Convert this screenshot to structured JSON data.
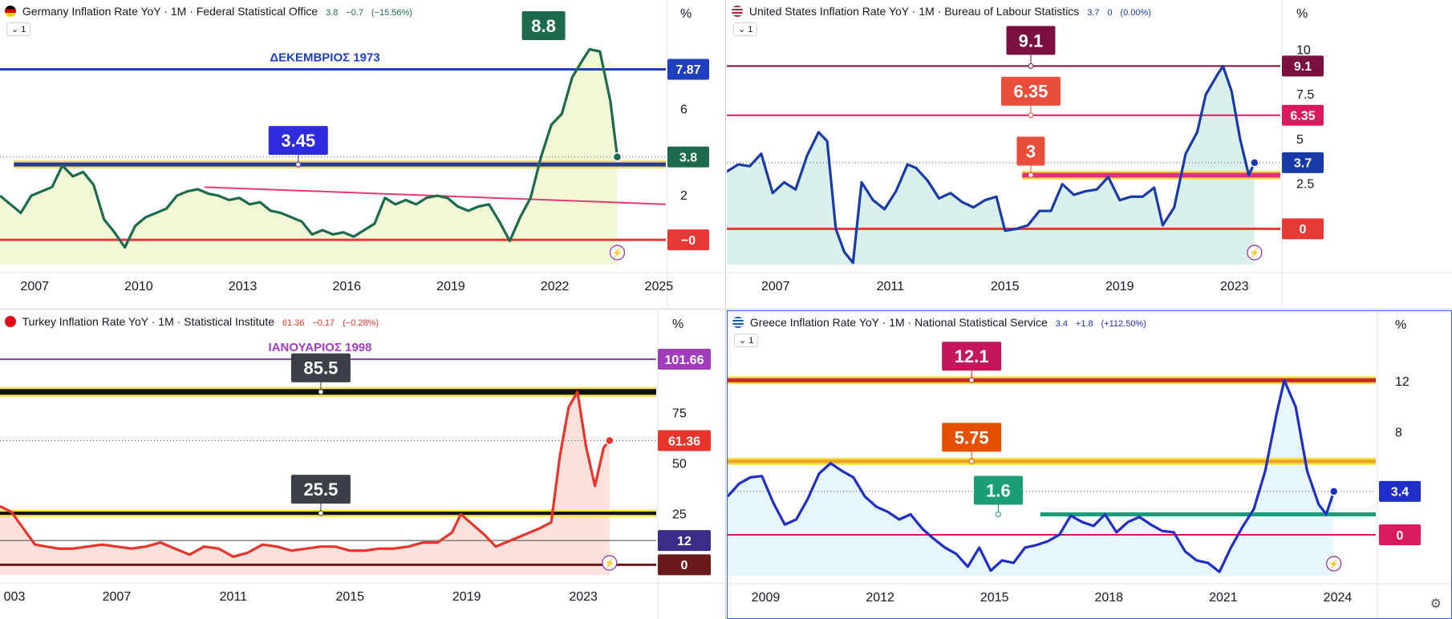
{
  "chart_data": [
    {
      "type": "line",
      "title": "Germany Inflation Rate YoY · 1M · Federal Statistical Office",
      "header_values": {
        "last": "3.8",
        "change": "−0.7",
        "change_pct": "(−15.56%)"
      },
      "interval": "1",
      "ylabel": "%",
      "ylim": [
        -1.2,
        9.6
      ],
      "xlim": [
        2006.0,
        2025.2
      ],
      "y_ticks": [
        "6",
        "2"
      ],
      "x_ticks": [
        "2007",
        "2010",
        "2013",
        "2016",
        "2019",
        "2022",
        "2025"
      ],
      "annotations": [
        "ΔΕΚΕΜΒΡΙΟΣ 1973"
      ],
      "price_badges": [
        "7.87",
        "3.8",
        "−0"
      ],
      "callouts": [
        "8.8",
        "3.45"
      ],
      "colors": {
        "line": "#1b6b4c",
        "fill": "#e8f3b5",
        "badge_last": "#1b6b4c"
      },
      "series": [
        {
          "x": [
            2006.0,
            2006.3,
            2006.6,
            2006.9,
            2007.2,
            2007.5,
            2007.8,
            2008.1,
            2008.4,
            2008.7,
            2009.0,
            2009.3,
            2009.6,
            2009.9,
            2010.2,
            2010.5,
            2010.8,
            2011.1,
            2011.4,
            2011.7,
            2012.0,
            2012.3,
            2012.6,
            2012.9,
            2013.2,
            2013.5,
            2013.8,
            2014.1,
            2014.4,
            2014.7,
            2015.0,
            2015.3,
            2015.6,
            2015.9,
            2016.2,
            2016.5,
            2016.8,
            2017.1,
            2017.4,
            2017.7,
            2018.0,
            2018.3,
            2018.6,
            2018.9,
            2019.2,
            2019.5,
            2019.8,
            2020.1,
            2020.4,
            2020.7,
            2021.0,
            2021.3,
            2021.6,
            2021.9,
            2022.2,
            2022.5,
            2022.8,
            2023.0,
            2023.3,
            2023.6,
            2023.8
          ],
          "y": [
            2.0,
            1.6,
            1.2,
            2.0,
            2.2,
            2.4,
            3.4,
            2.9,
            3.1,
            2.5,
            0.9,
            0.3,
            -0.4,
            0.6,
            1.0,
            1.2,
            1.4,
            2.0,
            2.2,
            2.3,
            2.1,
            2.0,
            1.8,
            1.9,
            1.6,
            1.7,
            1.3,
            1.2,
            1.0,
            0.8,
            0.2,
            0.4,
            0.2,
            0.3,
            0.1,
            0.4,
            0.7,
            1.9,
            1.6,
            1.8,
            1.6,
            1.9,
            2.0,
            1.9,
            1.5,
            1.3,
            1.5,
            1.6,
            0.8,
            -0.1,
            1.0,
            1.9,
            3.8,
            5.3,
            5.8,
            7.5,
            8.3,
            8.8,
            8.7,
            6.4,
            3.8
          ]
        }
      ]
    },
    {
      "type": "line",
      "title": "United States Inflation Rate YoY · 1M · Bureau of Labour Statistics",
      "header_values": {
        "last": "3.7",
        "change": "0",
        "change_pct": "(0.00%)"
      },
      "interval": "1",
      "ylabel": "%",
      "ylim": [
        -2.0,
        11.0
      ],
      "xlim": [
        2005.3,
        2024.6
      ],
      "y_ticks": [
        "10",
        "7.5",
        "5",
        "2.5"
      ],
      "x_ticks": [
        "2007",
        "2011",
        "2015",
        "2019",
        "2023"
      ],
      "price_badges": [
        "9.1",
        "6.35",
        "3.7",
        "0"
      ],
      "callouts": [
        "9.1",
        "6.35",
        "3"
      ],
      "colors": {
        "line": "#1a3aa8",
        "fill": "#b9e3dc",
        "badge_last": "#1a3aa8"
      },
      "series": [
        {
          "x": [
            2005.3,
            2005.7,
            2006.1,
            2006.5,
            2006.9,
            2007.3,
            2007.7,
            2008.1,
            2008.5,
            2008.8,
            2009.1,
            2009.4,
            2009.7,
            2010.0,
            2010.4,
            2010.8,
            2011.2,
            2011.6,
            2011.9,
            2012.3,
            2012.7,
            2013.1,
            2013.5,
            2013.9,
            2014.3,
            2014.7,
            2015.0,
            2015.4,
            2015.8,
            2016.2,
            2016.6,
            2017.0,
            2017.4,
            2017.8,
            2018.2,
            2018.6,
            2019.0,
            2019.4,
            2019.8,
            2020.2,
            2020.5,
            2020.9,
            2021.3,
            2021.7,
            2022.0,
            2022.4,
            2022.6,
            2022.9,
            2023.2,
            2023.5,
            2023.7
          ],
          "y": [
            3.2,
            3.6,
            3.5,
            4.2,
            2.0,
            2.6,
            2.2,
            4.1,
            5.4,
            4.9,
            0.0,
            -1.3,
            -1.9,
            2.6,
            1.6,
            1.1,
            2.1,
            3.6,
            3.4,
            2.7,
            1.7,
            2.0,
            1.5,
            1.2,
            1.6,
            1.8,
            -0.1,
            0.0,
            0.2,
            1.0,
            1.0,
            2.5,
            1.9,
            2.1,
            2.2,
            2.9,
            1.6,
            1.8,
            1.8,
            2.3,
            0.2,
            1.2,
            4.2,
            5.4,
            7.5,
            8.6,
            9.1,
            7.7,
            5.0,
            3.0,
            3.7
          ]
        }
      ]
    },
    {
      "type": "line",
      "title": "Turkey Inflation Rate YoY · 1M · Statistical Institute",
      "header_values": {
        "last": "61.36",
        "change": "−0.17",
        "change_pct": "(−0.28%)"
      },
      "interval": "",
      "ylabel": "%",
      "ylim": [
        -5,
        110
      ],
      "xlim": [
        2003.0,
        2025.5
      ],
      "y_ticks": [
        "75",
        "50",
        "25"
      ],
      "x_ticks": [
        "003",
        "2007",
        "2011",
        "2015",
        "2019",
        "2023"
      ],
      "annotations": [
        "ΙΑΝΟΥΑΡΙΟΣ 1998"
      ],
      "price_badges": [
        "101.66",
        "61.36",
        "12",
        "0"
      ],
      "callouts": [
        "85.5",
        "25.5"
      ],
      "colors": {
        "line": "#e8352b",
        "fill": "#f9c8c0",
        "badge_last": "#e8352b"
      },
      "series": [
        {
          "x": [
            2003.0,
            2003.4,
            2003.8,
            2004.2,
            2004.6,
            2005.0,
            2005.5,
            2006.0,
            2006.5,
            2007.0,
            2007.5,
            2008.0,
            2008.5,
            2009.0,
            2009.5,
            2010.0,
            2010.5,
            2011.0,
            2011.5,
            2012.0,
            2012.5,
            2013.0,
            2013.5,
            2014.0,
            2014.5,
            2015.0,
            2015.5,
            2016.0,
            2016.5,
            2017.0,
            2017.5,
            2018.0,
            2018.5,
            2018.8,
            2019.2,
            2019.6,
            2020.0,
            2020.5,
            2021.0,
            2021.5,
            2021.9,
            2022.2,
            2022.5,
            2022.8,
            2023.1,
            2023.4,
            2023.7,
            2023.9
          ],
          "y": [
            29.0,
            26.0,
            18.0,
            10.0,
            9.0,
            8.0,
            8.0,
            9.0,
            10.0,
            9.0,
            8.0,
            9.0,
            11.0,
            8.0,
            5.0,
            9.0,
            8.0,
            4.0,
            6.0,
            10.0,
            9.0,
            7.0,
            8.0,
            9.0,
            9.0,
            7.0,
            7.0,
            8.0,
            8.0,
            9.0,
            11.0,
            11.0,
            16.0,
            25.0,
            20.0,
            15.0,
            9.0,
            12.0,
            15.0,
            18.0,
            21.0,
            54.0,
            78.0,
            85.5,
            58.0,
            39.0,
            58.0,
            61.4
          ]
        }
      ]
    },
    {
      "type": "line",
      "title": "Greece Inflation Rate YoY · 1M · National Statistical Service",
      "header_values": {
        "last": "3.4",
        "change": "+1.8",
        "change_pct": "(+112.50%)"
      },
      "interval": "1",
      "ylabel": "%",
      "ylim": [
        -3.2,
        15.0
      ],
      "xlim": [
        2008.0,
        2025.0
      ],
      "y_ticks": [
        "12",
        "8"
      ],
      "x_ticks": [
        "2009",
        "2012",
        "2015",
        "2018",
        "2021",
        "2024"
      ],
      "price_badges": [
        "3.4",
        "0"
      ],
      "callouts": [
        "12.1",
        "5.75",
        "1.6"
      ],
      "colors": {
        "line": "#1f2ec4",
        "fill": "#d4eef7",
        "badge_last": "#1f2ec4"
      },
      "series": [
        {
          "x": [
            2008.0,
            2008.3,
            2008.6,
            2008.9,
            2009.2,
            2009.5,
            2009.8,
            2010.1,
            2010.4,
            2010.7,
            2011.0,
            2011.3,
            2011.6,
            2011.9,
            2012.2,
            2012.5,
            2012.8,
            2013.1,
            2013.4,
            2013.7,
            2014.0,
            2014.3,
            2014.6,
            2014.9,
            2015.2,
            2015.5,
            2015.8,
            2016.1,
            2016.4,
            2016.7,
            2017.0,
            2017.3,
            2017.6,
            2017.9,
            2018.2,
            2018.5,
            2018.8,
            2019.1,
            2019.4,
            2019.7,
            2020.0,
            2020.3,
            2020.6,
            2020.9,
            2021.2,
            2021.5,
            2021.8,
            2022.1,
            2022.4,
            2022.6,
            2022.9,
            2023.2,
            2023.5,
            2023.7,
            2023.9
          ],
          "y": [
            3.0,
            4.0,
            4.5,
            4.6,
            2.5,
            0.8,
            1.2,
            2.8,
            4.8,
            5.6,
            5.0,
            4.5,
            3.0,
            2.2,
            1.8,
            1.2,
            1.6,
            0.5,
            -0.3,
            -1.0,
            -1.5,
            -2.5,
            -1.0,
            -2.8,
            -2.0,
            -2.2,
            -1.0,
            -0.8,
            -0.5,
            0.0,
            1.5,
            1.0,
            0.7,
            1.6,
            0.2,
            1.0,
            1.4,
            0.8,
            0.3,
            0.2,
            -1.3,
            -2.0,
            -2.2,
            -2.9,
            -1.0,
            0.6,
            2.0,
            5.0,
            9.5,
            12.1,
            10.0,
            5.0,
            2.4,
            1.6,
            3.4
          ]
        }
      ]
    }
  ],
  "panels": [
    {
      "levels": [
        {
          "label": "ΔΕΚΕΜΒΡΙΟΣ 1973",
          "value": 7.87,
          "color": "#1f3fbf",
          "width": 3,
          "badge": "7.87"
        },
        {
          "value": 3.45,
          "color": "#2637a6",
          "width": 5,
          "halo": "#f4e04d",
          "from": 2006.4,
          "callout": "3.45",
          "callout_x": 2014.6,
          "callout_bg": "#2f2ce0"
        },
        {
          "value": -0.05,
          "color": "#e53935",
          "width": 3,
          "badge": "−0"
        }
      ],
      "trendline": {
        "x1": 2011.9,
        "y1": 2.4,
        "x2": 2025.2,
        "y2": 1.6,
        "color": "#e53970"
      },
      "peak_callout": {
        "text": "8.8",
        "x": 2022.6,
        "y": 8.8,
        "bg": "#1b6b4c"
      }
    },
    {
      "levels": [
        {
          "value": 9.1,
          "color": "#7a1040",
          "width": 2,
          "badge": "9.1",
          "callout": "9.1",
          "callout_x": 2015.9,
          "callout_bg": "#7a1040",
          "callout_top": true
        },
        {
          "value": 6.35,
          "color": "#d81b60",
          "width": 2,
          "badge": "6.35",
          "callout": "6.35",
          "callout_x": 2015.9,
          "callout_bg": "#e94e3c"
        },
        {
          "value": 3.0,
          "color": "#e0317a",
          "width": 6,
          "halo": "#f4e04d",
          "from": 2015.6,
          "callout": "3",
          "callout_x": 2015.9,
          "callout_bg": "#e94e3c"
        },
        {
          "value": 0.0,
          "color": "#e53935",
          "width": 3,
          "badge": "0"
        }
      ]
    },
    {
      "levels": [
        {
          "label": "ΙΑΝΟΥΑΡΙΟΣ 1998",
          "value": 101.66,
          "color": "#a13dbd",
          "width": 2,
          "badge": "101.66"
        },
        {
          "value": 85.5,
          "color": "#111111",
          "width": 7,
          "halo": "#f4e04d",
          "from": 2002.3,
          "callout": "85.5",
          "callout_x": 2014.0,
          "callout_bg": "#3b3f46"
        },
        {
          "value": 25.5,
          "color": "#111111",
          "width": 4,
          "halo": "#f4e04d",
          "from": 2002.3,
          "callout": "25.5",
          "callout_x": 2014.0,
          "callout_bg": "#3b3f46"
        },
        {
          "value": 12,
          "color": "#444444",
          "width": 1,
          "badge": "12",
          "badge_bg": "#3d2c87"
        },
        {
          "value": 0,
          "color": "#6b1a1a",
          "width": 3,
          "badge": "0",
          "badge_bg": "#6b1a1a"
        }
      ]
    },
    {
      "levels": [
        {
          "value": 12.1,
          "color": "#c62828",
          "width": 5,
          "halo": "#f4e04d",
          "from": 2008.0,
          "callout": "12.1",
          "callout_x": 2014.4,
          "callout_bg": "#c2185b"
        },
        {
          "value": 5.75,
          "color": "#f0a020",
          "width": 4,
          "halo": "#f4e04d",
          "from": 2008.0,
          "callout": "5.75",
          "callout_x": 2014.4,
          "callout_bg": "#e65100"
        },
        {
          "value": 1.6,
          "color": "#1b9e77",
          "width": 5,
          "from": 2016.2,
          "callout": "1.6",
          "callout_x": 2015.1,
          "callout_bg": "#1b9e77"
        },
        {
          "value": 0.0,
          "color": "#d81b60",
          "width": 2,
          "badge": "0"
        }
      ]
    }
  ]
}
